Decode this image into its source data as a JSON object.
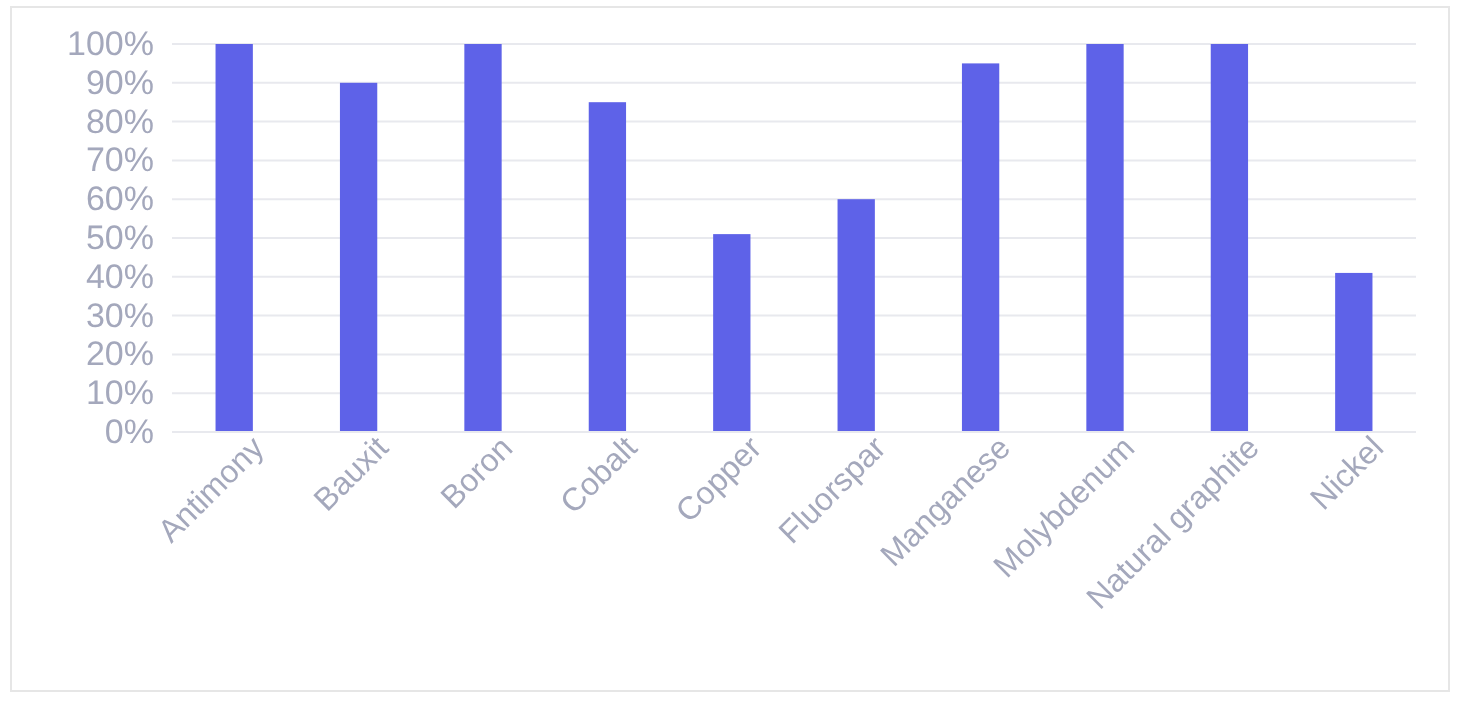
{
  "chart_data": {
    "type": "bar",
    "categories": [
      "Antimony",
      "Bauxit",
      "Boron",
      "Cobalt",
      "Copper",
      "Fluorspar",
      "Manganese",
      "Molybdenum",
      "Natural graphite",
      "Nickel"
    ],
    "values": [
      100,
      90,
      100,
      85,
      51,
      60,
      95,
      100,
      100,
      41
    ],
    "color": "#5e62e8",
    "ylim": [
      0,
      100
    ],
    "yticks": [
      {
        "value": 0,
        "label": "0%"
      },
      {
        "value": 10,
        "label": "10%"
      },
      {
        "value": 20,
        "label": "20%"
      },
      {
        "value": 30,
        "label": "30%"
      },
      {
        "value": 40,
        "label": "40%"
      },
      {
        "value": 50,
        "label": "50%"
      },
      {
        "value": 60,
        "label": "60%"
      },
      {
        "value": 70,
        "label": "70%"
      },
      {
        "value": 80,
        "label": "80%"
      },
      {
        "value": 90,
        "label": "90%"
      },
      {
        "value": 100,
        "label": "100%"
      }
    ],
    "grid": "y"
  }
}
